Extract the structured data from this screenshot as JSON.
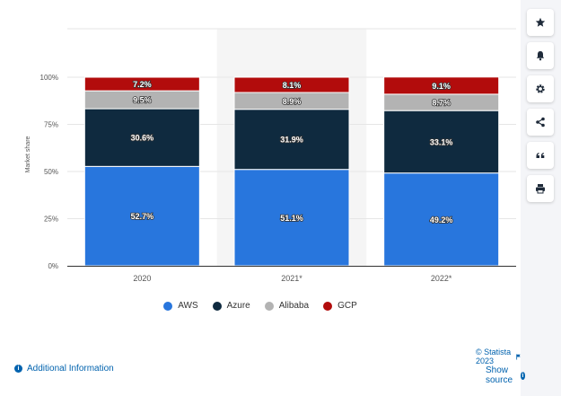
{
  "chart_data": {
    "type": "bar",
    "stacked": true,
    "categories": [
      "2020",
      "2021*",
      "2022*"
    ],
    "series": [
      {
        "name": "AWS",
        "values": [
          52.7,
          51.1,
          49.2
        ],
        "color": "#2876dd",
        "labels": [
          "52.7%",
          "51.1%",
          "49.2%"
        ]
      },
      {
        "name": "Azure",
        "values": [
          30.6,
          31.9,
          33.1
        ],
        "color": "#0f2a3f",
        "labels": [
          "30.6%",
          "31.9%",
          "33.1%"
        ]
      },
      {
        "name": "Alibaba",
        "values": [
          9.5,
          8.9,
          8.7
        ],
        "color": "#b3b3b3",
        "labels": [
          "9.5%",
          "8.9%",
          "8.7%"
        ]
      },
      {
        "name": "GCP",
        "values": [
          7.2,
          8.1,
          9.1
        ],
        "color": "#b20c0c",
        "labels": [
          "7.2%",
          "8.1%",
          "9.1%"
        ]
      }
    ],
    "ylabel": "Market share",
    "ylim": [
      0,
      100
    ],
    "yticks": [
      0,
      25,
      50,
      75,
      100
    ],
    "ytick_labels": [
      "0%",
      "25%",
      "50%",
      "75%",
      "100%"
    ],
    "grid": true,
    "highlighted_category": "2021*",
    "legend_position": "bottom"
  },
  "legend": [
    {
      "label": "AWS",
      "color": "#2876dd"
    },
    {
      "label": "Azure",
      "color": "#0f2a3f"
    },
    {
      "label": "Alibaba",
      "color": "#b3b3b3"
    },
    {
      "label": "GCP",
      "color": "#b20c0c"
    }
  ],
  "sidebar": {
    "buttons": [
      {
        "icon": "star-icon"
      },
      {
        "icon": "bell-icon"
      },
      {
        "icon": "gear-icon"
      },
      {
        "icon": "share-icon"
      },
      {
        "icon": "quote-icon"
      },
      {
        "icon": "print-icon"
      }
    ]
  },
  "footer": {
    "credit": "© Statista 2023",
    "credit_icon": "flag-icon",
    "additional_info": "Additional Information",
    "show_source": "Show source"
  }
}
